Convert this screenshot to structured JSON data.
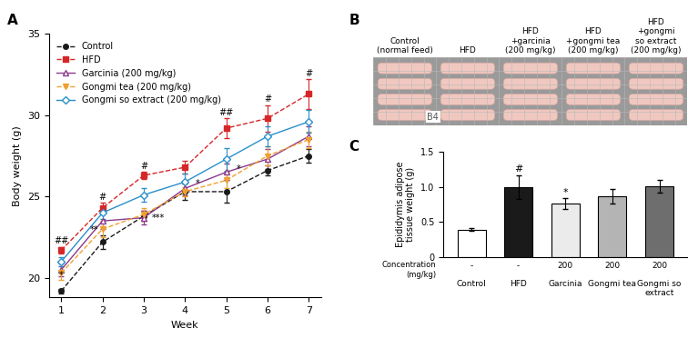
{
  "chart_data": [
    {
      "type": "line",
      "panel": "A",
      "x_label": "Week",
      "y_label": "Body weight (g)",
      "x": [
        1,
        2,
        3,
        4,
        5,
        6,
        7
      ],
      "xlim": [
        0.7,
        7.3
      ],
      "xticks": [
        1,
        2,
        3,
        4,
        5,
        6,
        7
      ],
      "ylim": [
        18.8,
        35
      ],
      "yticks": [
        20,
        25,
        30,
        35
      ],
      "grid": false,
      "legend": "upper left",
      "series": [
        {
          "name": "Control",
          "color": "#1a1a1a",
          "marker": "circle",
          "line_style": "dashed",
          "values": [
            19.2,
            22.2,
            23.8,
            25.3,
            25.3,
            26.6,
            27.5
          ],
          "errors": [
            0.15,
            0.4,
            0.3,
            0.5,
            0.7,
            0.3,
            0.4
          ]
        },
        {
          "name": "HFD",
          "color": "#d62728",
          "marker": "square",
          "line_style": "dashed",
          "values": [
            21.7,
            24.3,
            26.3,
            26.8,
            29.2,
            29.8,
            31.3
          ],
          "errors": [
            0.2,
            0.3,
            0.2,
            0.4,
            0.6,
            0.8,
            0.9
          ]
        },
        {
          "name": "Garcinia (200 mg/kg)",
          "color": "#8b3a8b",
          "marker": "triangle_open",
          "line_style": "solid",
          "values": [
            20.5,
            23.5,
            23.7,
            25.5,
            26.5,
            27.3,
            28.7
          ],
          "errors": [
            0.4,
            0.5,
            0.4,
            0.4,
            0.5,
            0.6,
            0.6
          ]
        },
        {
          "name": "Gongmi tea (200 mg/kg)",
          "color": "#f0a030",
          "marker": "triangle_down",
          "line_style": "dashed",
          "values": [
            20.3,
            23.0,
            23.9,
            25.3,
            26.0,
            27.5,
            28.5
          ],
          "errors": [
            0.4,
            0.5,
            0.4,
            0.3,
            0.5,
            0.6,
            0.5
          ]
        },
        {
          "name": "Gongmi so extract (200 mg/kg)",
          "color": "#2a8fc9",
          "marker": "diamond_open",
          "line_style": "solid",
          "values": [
            21.0,
            24.0,
            25.1,
            25.9,
            27.3,
            28.7,
            29.6
          ],
          "errors": [
            0.3,
            0.4,
            0.4,
            0.5,
            0.7,
            0.6,
            0.7
          ]
        }
      ],
      "annotations": [
        {
          "text": "##",
          "x": 1,
          "y": 22.0
        },
        {
          "text": "#",
          "x": 2,
          "y": 24.7
        },
        {
          "text": "#",
          "x": 3,
          "y": 26.6
        },
        {
          "text": "##",
          "x": 5,
          "y": 29.9
        },
        {
          "text": "#",
          "x": 6,
          "y": 30.7
        },
        {
          "text": "#",
          "x": 7,
          "y": 32.3
        },
        {
          "text": "*",
          "x": 1,
          "y": 19.9
        },
        {
          "text": "**",
          "x": 1.8,
          "y": 22.7
        },
        {
          "text": "***",
          "x": 3.35,
          "y": 23.4
        },
        {
          "text": "*",
          "x": 4.3,
          "y": 25.5
        },
        {
          "text": "*",
          "x": 5.3,
          "y": 26.4
        }
      ]
    },
    {
      "type": "image",
      "panel": "B",
      "labels": [
        "Control\n(normal feed)",
        "HFD",
        "HFD\n+garcinia\n(200 mg/kg)",
        "HFD\n+gongmi tea\n(200 mg/kg)",
        "HFD\n+gongmi\nso extract\n(200 mg/kg)"
      ],
      "annotation": "B4"
    },
    {
      "type": "bar",
      "panel": "C",
      "y_label": "Epididymis adipose tissue weight (g)",
      "categories": [
        "Control",
        "HFD",
        "Garcinia",
        "Gongmi tea",
        "Gongmi so extract"
      ],
      "values": [
        0.39,
        1.0,
        0.76,
        0.87,
        1.01
      ],
      "errors": [
        0.02,
        0.17,
        0.08,
        0.1,
        0.09
      ],
      "colors": [
        "#ffffff",
        "#1a1a1a",
        "#ebebeb",
        "#b4b4b4",
        "#6e6e6e"
      ],
      "significance": [
        null,
        "#",
        "*",
        null,
        null
      ],
      "concentration_label": "Concentration\n(mg/kg)",
      "concentrations": [
        "-",
        "-",
        "200",
        "200",
        "200"
      ],
      "ylim": [
        0,
        1.5
      ],
      "yticks": [
        0,
        0.5,
        {
          "value": 1,
          "label": "1.0"
        },
        1.5
      ],
      "grid": false
    }
  ]
}
